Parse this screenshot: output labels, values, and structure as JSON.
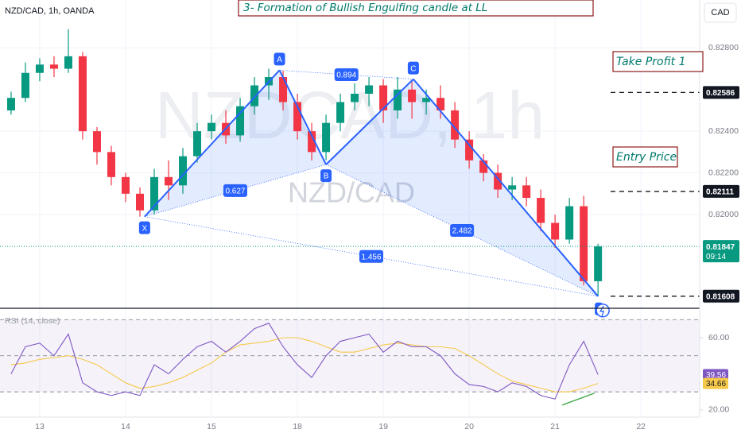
{
  "chart_data": [
    {
      "type": "candlestick",
      "title": "NZD/CAD, 1h, OANDA",
      "currency": "CAD",
      "watermark": "NZDCAD, 1h",
      "watermark_sub": "NZD/CAD",
      "headline": "3- Formation of Bullish Engulfing candle at LL",
      "annotations": [
        "Take Profit 1",
        "Entry Price"
      ],
      "up_color": "#089981",
      "down_color": "#f23645",
      "x": [
        -8,
        -4,
        0,
        4,
        8,
        12,
        16,
        20,
        24,
        28,
        32,
        36,
        40,
        44,
        48,
        52,
        56,
        60,
        64,
        68,
        72,
        76,
        80,
        84,
        88,
        92,
        96,
        100,
        104,
        108,
        112,
        116,
        120,
        124,
        128,
        132,
        136,
        140,
        144,
        148,
        152,
        156
      ],
      "open": [
        0.825,
        0.8256,
        0.8268,
        0.8272,
        0.827,
        0.8276,
        0.824,
        0.823,
        0.8218,
        0.821,
        0.8202,
        0.8218,
        0.8214,
        0.8228,
        0.824,
        0.8244,
        0.8238,
        0.8252,
        0.8262,
        0.8266,
        0.8254,
        0.824,
        0.823,
        0.8244,
        0.8254,
        0.8258,
        0.8262,
        0.825,
        0.826,
        0.8254,
        0.8256,
        0.825,
        0.8236,
        0.8226,
        0.822,
        0.8212,
        0.8214,
        0.8208,
        0.8196,
        0.8188,
        0.8204,
        0.8168
      ],
      "high": [
        0.8259,
        0.8273,
        0.8275,
        0.8276,
        0.8289,
        0.8278,
        0.8242,
        0.8233,
        0.822,
        0.8213,
        0.8222,
        0.8226,
        0.8232,
        0.8244,
        0.8248,
        0.825,
        0.8256,
        0.8266,
        0.827,
        0.8269,
        0.8258,
        0.8244,
        0.8248,
        0.8258,
        0.8263,
        0.8266,
        0.8265,
        0.8266,
        0.8264,
        0.826,
        0.8262,
        0.8254,
        0.824,
        0.8229,
        0.8224,
        0.8218,
        0.8218,
        0.8212,
        0.82,
        0.8208,
        0.8209,
        0.8186
      ],
      "low": [
        0.8248,
        0.8254,
        0.8264,
        0.8266,
        0.8268,
        0.8236,
        0.8224,
        0.8214,
        0.8206,
        0.8199,
        0.82,
        0.8207,
        0.821,
        0.8225,
        0.8236,
        0.8234,
        0.8235,
        0.8248,
        0.8255,
        0.825,
        0.8236,
        0.8226,
        0.8226,
        0.824,
        0.825,
        0.8252,
        0.8244,
        0.8246,
        0.8246,
        0.8248,
        0.8246,
        0.8232,
        0.8222,
        0.8216,
        0.8208,
        0.8207,
        0.8204,
        0.8192,
        0.8184,
        0.8186,
        0.8166,
        0.81608
      ],
      "close": [
        0.8256,
        0.8268,
        0.8272,
        0.827,
        0.8276,
        0.824,
        0.823,
        0.8218,
        0.821,
        0.8202,
        0.8218,
        0.8214,
        0.8228,
        0.824,
        0.8244,
        0.8238,
        0.8252,
        0.8262,
        0.8266,
        0.8254,
        0.824,
        0.823,
        0.8244,
        0.8254,
        0.8258,
        0.8262,
        0.825,
        0.826,
        0.8254,
        0.8256,
        0.825,
        0.8236,
        0.8226,
        0.822,
        0.8212,
        0.8214,
        0.8208,
        0.8196,
        0.8188,
        0.8204,
        0.8168,
        0.81847
      ],
      "xlim": [
        -11.1,
        184.4
      ],
      "xticks": [
        {
          "value": 0,
          "label": "13"
        },
        {
          "value": 24,
          "label": "14"
        },
        {
          "value": 48,
          "label": "15"
        },
        {
          "value": 72,
          "label": "18"
        },
        {
          "value": 96,
          "label": "19"
        },
        {
          "value": 120,
          "label": "20"
        },
        {
          "value": 144,
          "label": "21"
        },
        {
          "value": 168,
          "label": "22"
        }
      ],
      "ylim": [
        0.8155,
        0.8303
      ],
      "yticks": [
        {
          "value": 0.828,
          "label": "0.82800"
        },
        {
          "value": 0.824,
          "label": "0.82400"
        },
        {
          "value": 0.822,
          "label": "0.82200"
        },
        {
          "value": 0.82,
          "label": "0.82000"
        }
      ],
      "levels": [
        0.82586,
        0.82111,
        0.81608
      ],
      "current": {
        "value": 0.81847,
        "countdown": "09:14"
      },
      "pattern": {
        "points": [
          {
            "label": "X",
            "x": 29.3,
            "y": 0.8199
          },
          {
            "label": "A",
            "x": 67,
            "y": 0.82693
          },
          {
            "label": "B",
            "x": 80,
            "y": 0.8224
          },
          {
            "label": "C",
            "x": 104.4,
            "y": 0.8265
          },
          {
            "x": 156,
            "y": 0.81608
          }
        ],
        "ratios": [
          0.627,
          0.894,
          2.482,
          1.456
        ]
      }
    },
    {
      "type": "line",
      "title": "RSI (14, close)",
      "series": [
        {
          "color": "#7e57c2",
          "values": [
            40,
            55,
            57,
            50,
            62,
            35,
            30,
            28,
            30,
            28,
            45,
            40,
            48,
            55,
            58,
            52,
            58,
            65,
            68,
            55,
            45,
            38,
            50,
            58,
            60,
            62,
            52,
            58,
            55,
            55,
            50,
            40,
            34,
            33,
            30,
            35,
            33,
            28,
            26,
            45,
            58,
            39.56
          ]
        },
        {
          "color": "#f7c948",
          "values": [
            45,
            46,
            48,
            49,
            50,
            48,
            45,
            40,
            35,
            32,
            33,
            35,
            38,
            42,
            46,
            52,
            56,
            57,
            58,
            60,
            60,
            58,
            55,
            52,
            52,
            54,
            56,
            57,
            56,
            55,
            55,
            54,
            50,
            45,
            40,
            36,
            34,
            32,
            30,
            30,
            32,
            34.66
          ]
        }
      ],
      "ylim": [
        16,
        75.4
      ],
      "yticks": [
        {
          "value": 60,
          "label": "60.00"
        },
        {
          "value": 20,
          "label": "20.00"
        }
      ],
      "bands": [
        70,
        50,
        30
      ],
      "divergence": {
        "x": [
          146,
          155
        ],
        "y": [
          22.7,
          29.3
        ]
      }
    }
  ]
}
